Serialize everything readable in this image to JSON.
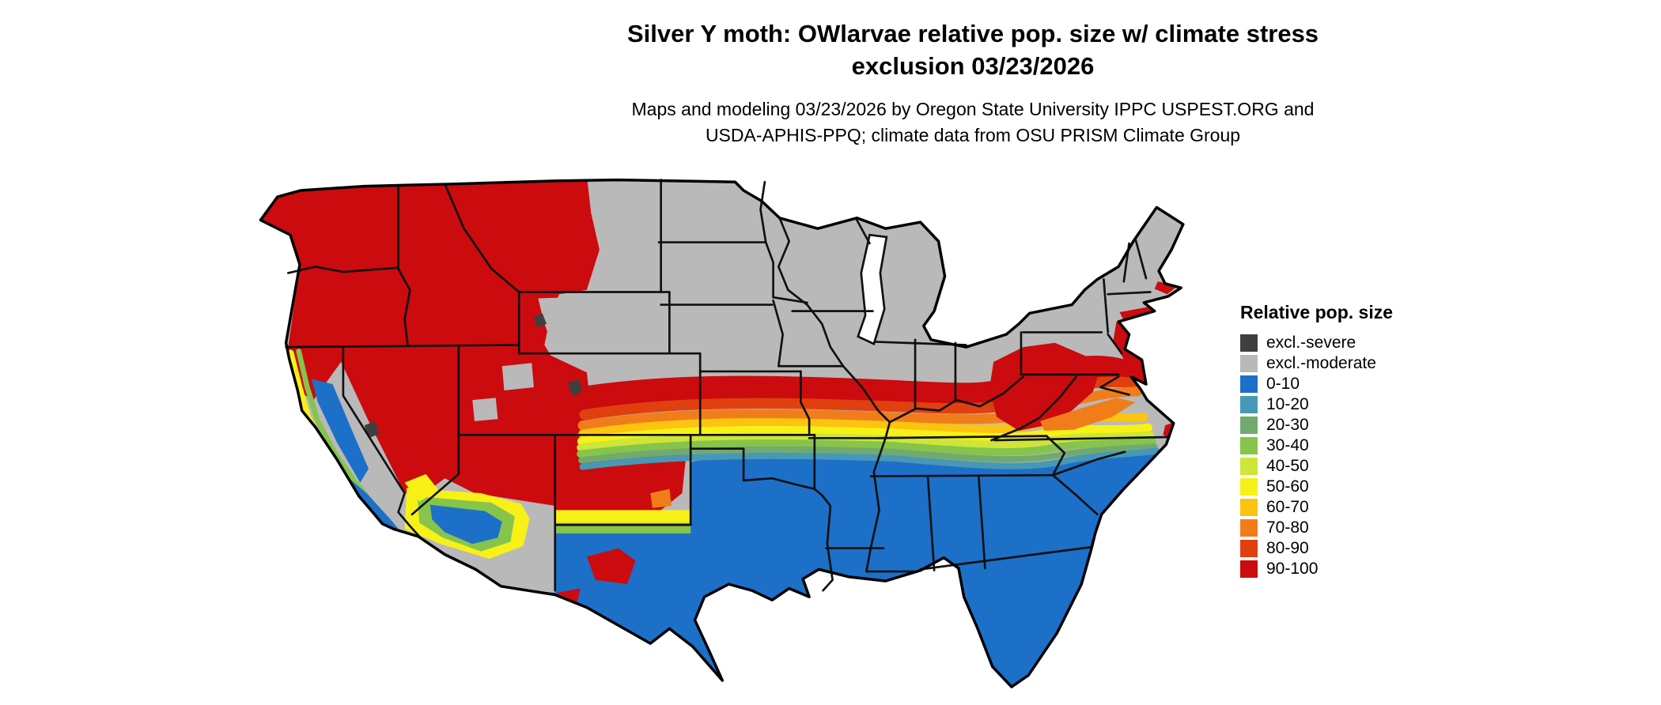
{
  "header": {
    "title_line1": "Silver Y moth: OWlarvae relative pop. size w/ climate stress",
    "title_line2": "exclusion 03/23/2026",
    "subtitle_line1": "Maps and modeling 03/23/2026 by Oregon State University IPPC USPEST.ORG and",
    "subtitle_line2": "USDA-APHIS-PPQ; climate data from OSU PRISM Climate Group"
  },
  "legend": {
    "title": "Relative pop. size",
    "items": [
      {
        "key": "excl_severe",
        "label": "excl.-severe",
        "color": "#3f3f3f"
      },
      {
        "key": "excl_moderate",
        "label": "excl.-moderate",
        "color": "#b9b9b9"
      },
      {
        "key": "c0_10",
        "label": "0-10",
        "color": "#1c70c8"
      },
      {
        "key": "c10_20",
        "label": "10-20",
        "color": "#4798b6"
      },
      {
        "key": "c20_30",
        "label": "20-30",
        "color": "#71aa6e"
      },
      {
        "key": "c30_40",
        "label": "30-40",
        "color": "#86c44c"
      },
      {
        "key": "c40_50",
        "label": "40-50",
        "color": "#cde637"
      },
      {
        "key": "c50_60",
        "label": "50-60",
        "color": "#f7f118"
      },
      {
        "key": "c60_70",
        "label": "60-70",
        "color": "#fbc410"
      },
      {
        "key": "c70_80",
        "label": "70-80",
        "color": "#f07d1a"
      },
      {
        "key": "c80_90",
        "label": "80-90",
        "color": "#e0400f"
      },
      {
        "key": "c90_100",
        "label": "90-100",
        "color": "#cb0b0e"
      }
    ]
  }
}
